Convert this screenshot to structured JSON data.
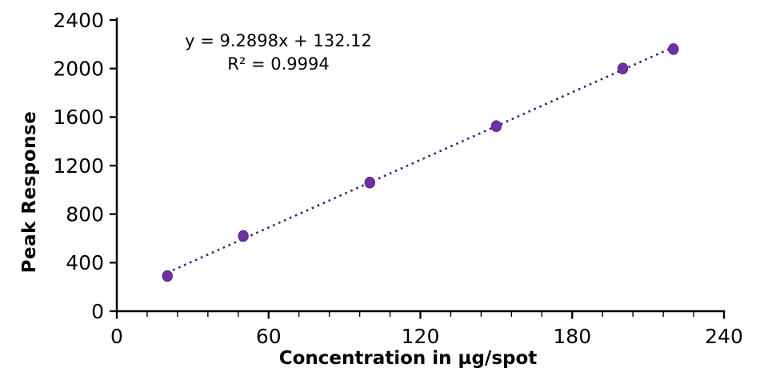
{
  "figure": {
    "equation_line1": "y = 9.2898x + 132.12",
    "equation_line2": "R² = 0.9994"
  },
  "chart_data": {
    "type": "scatter",
    "xlabel": "Concentration in µg/spot",
    "ylabel": "Peak Response",
    "xlim": [
      0,
      240
    ],
    "ylim": [
      0,
      2400
    ],
    "x_major_ticks": [
      0,
      60,
      120,
      180,
      240
    ],
    "x_minor_tick_step": 12,
    "y_ticks": [
      0,
      400,
      800,
      1200,
      1600,
      2000,
      2400
    ],
    "grid": false,
    "legend": "none",
    "points": [
      {
        "x": 20,
        "y": 290
      },
      {
        "x": 50,
        "y": 620
      },
      {
        "x": 100,
        "y": 1060
      },
      {
        "x": 150,
        "y": 1525
      },
      {
        "x": 200,
        "y": 2000
      },
      {
        "x": 220,
        "y": 2160
      }
    ],
    "trendline": {
      "equation": "y = 9.2898x + 132.12",
      "slope": 9.2898,
      "intercept": 132.12,
      "r_squared": 0.9994,
      "x_range": [
        20,
        220
      ],
      "style": "dotted"
    },
    "colors": {
      "point": "#7030A0",
      "point_edge": "#5B2386",
      "trendline": "#3B1E75",
      "axis": "#000000",
      "text": "#000000"
    }
  }
}
